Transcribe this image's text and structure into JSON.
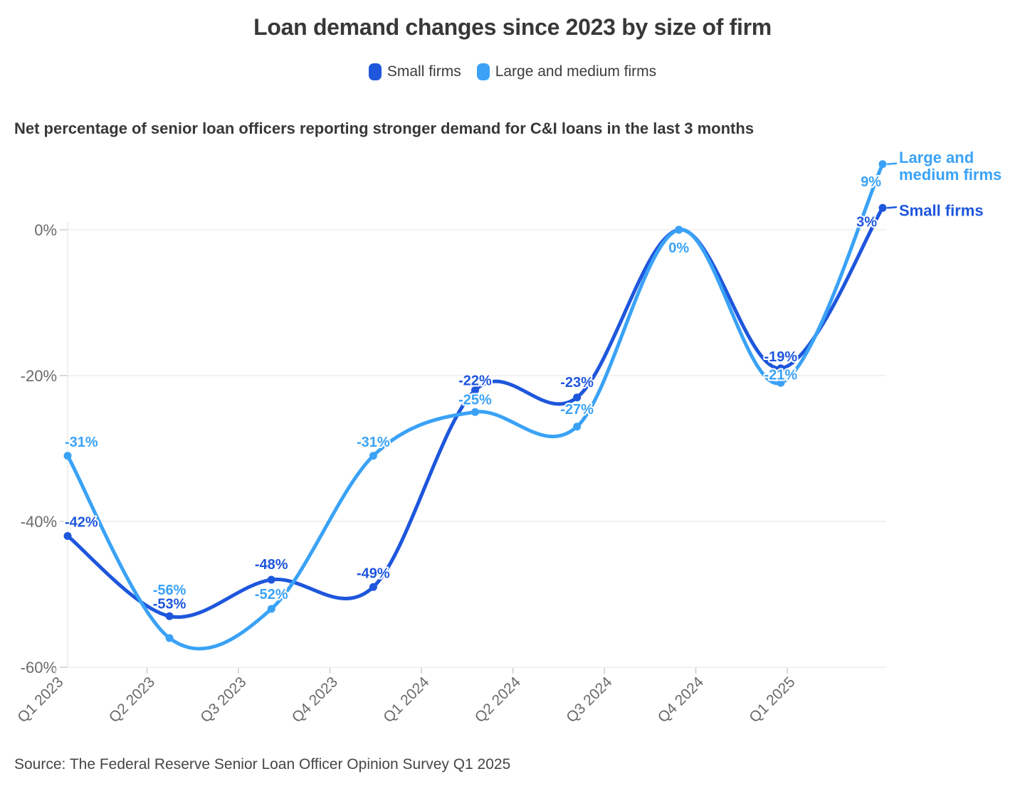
{
  "title": "Loan demand changes since 2023 by size of firm",
  "legend": {
    "items": [
      {
        "label": "Small firms",
        "color": "#1e56dc"
      },
      {
        "label": "Large and medium firms",
        "color": "#3aa2f6"
      }
    ]
  },
  "subtitle": "Net percentage of senior loan officers reporting stronger demand for C&I loans in the last 3 months",
  "source": "Source: The Federal Reserve Senior Loan Officer Opinion Survey Q1 2025",
  "chart_data": {
    "type": "line",
    "categories": [
      "Q1 2023",
      "Q2 2023",
      "Q3 2023",
      "Q4 2023",
      "Q1 2024",
      "Q2 2024",
      "Q3 2024",
      "Q4 2024",
      "Q1 2025"
    ],
    "series": [
      {
        "name": "Small firms",
        "color": "#1e56dc",
        "values": [
          -42,
          -53,
          -48,
          -49,
          -22,
          -23,
          0,
          -19,
          3
        ],
        "point_labels": [
          "-42%",
          "-53%",
          "-48%",
          "-49%",
          "-22%",
          "-23%",
          "",
          "-19%",
          "3%"
        ]
      },
      {
        "name": "Large and medium firms",
        "color": "#3aa2f6",
        "values": [
          -31,
          -56,
          -52,
          -31,
          -25,
          -27,
          0,
          -21,
          9
        ],
        "point_labels": [
          "-31%",
          "-56%",
          "-52%",
          "-31%",
          "-25%",
          "-27%",
          "0%",
          "-21%",
          "9%"
        ]
      }
    ],
    "y_axis": {
      "ticks": [
        {
          "value": 0,
          "label": "0%"
        },
        {
          "value": -20,
          "label": "-20%"
        },
        {
          "value": -40,
          "label": "-40%"
        },
        {
          "value": -60,
          "label": "-60%"
        }
      ],
      "range": [
        -60,
        10
      ]
    },
    "end_annotations": [
      {
        "series": "Large and medium firms",
        "lines": [
          "Large and",
          "medium firms"
        ]
      },
      {
        "series": "Small firms",
        "lines": [
          "Small firms"
        ]
      }
    ],
    "legend_position": "top",
    "grid": "horizontal"
  }
}
